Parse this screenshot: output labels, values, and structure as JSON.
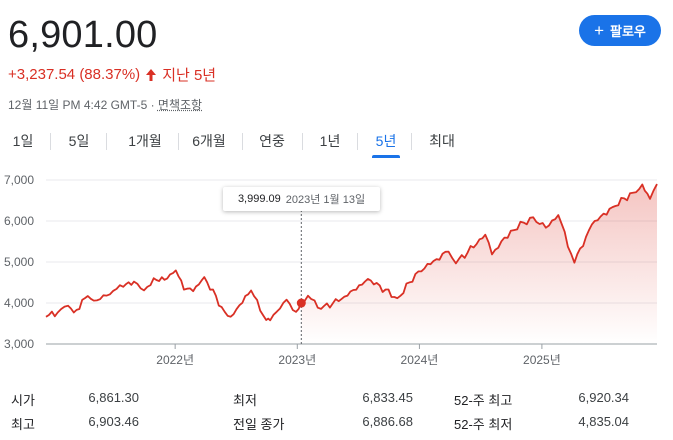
{
  "quote": {
    "price": "6,901.00",
    "change": "+3,237.54 (88.37%)",
    "period": "지난 5년",
    "timestamp": "12월 11일 PM 4:42 GMT-5 · ",
    "disclaimer_link": "면책조항"
  },
  "follow_button": {
    "icon": "plus-icon",
    "label": "팔로우"
  },
  "tabs": [
    {
      "label": "1일",
      "active": false
    },
    {
      "label": "5일",
      "active": false
    },
    {
      "label": "1개월",
      "active": false
    },
    {
      "label": "6개월",
      "active": false
    },
    {
      "label": "연중",
      "active": false
    },
    {
      "label": "1년",
      "active": false
    },
    {
      "label": "5년",
      "active": true
    },
    {
      "label": "최대",
      "active": false
    }
  ],
  "tooltip": {
    "value": "3,999.09",
    "date": "2023년 1월 13일"
  },
  "chart_data": {
    "type": "area",
    "title": "",
    "xlabel": "",
    "ylabel": "",
    "ylim": [
      3000,
      7000
    ],
    "yticks": [
      "7,000",
      "6,000",
      "5,000",
      "4,000",
      "3,000"
    ],
    "xticks": [
      "2022년",
      "2023년",
      "2024년",
      "2025년"
    ],
    "color": "#d93025",
    "grid": "horizontal",
    "series": [
      {
        "values": [
          [
            "2020-12-11",
            3663
          ],
          [
            "2021-01-15",
            3768
          ],
          [
            "2021-02-15",
            3934
          ],
          [
            "2021-03-04",
            3768
          ],
          [
            "2021-04-15",
            4170
          ],
          [
            "2021-05-12",
            4063
          ],
          [
            "2021-06-30",
            4297
          ],
          [
            "2021-07-30",
            4395
          ],
          [
            "2021-08-31",
            4522
          ],
          [
            "2021-09-30",
            4307
          ],
          [
            "2021-10-29",
            4605
          ],
          [
            "2021-11-30",
            4567
          ],
          [
            "2022-01-03",
            4796
          ],
          [
            "2022-01-27",
            4326
          ],
          [
            "2022-02-24",
            4288
          ],
          [
            "2022-03-29",
            4631
          ],
          [
            "2022-05-20",
            3901
          ],
          [
            "2022-06-16",
            3666
          ],
          [
            "2022-08-16",
            4305
          ],
          [
            "2022-09-30",
            3585
          ],
          [
            "2022-10-12",
            3577
          ],
          [
            "2022-11-30",
            4080
          ],
          [
            "2022-12-28",
            3783
          ],
          [
            "2023-01-13",
            3999
          ],
          [
            "2023-02-02",
            4179
          ],
          [
            "2023-03-13",
            3855
          ],
          [
            "2023-05-31",
            4180
          ],
          [
            "2023-07-31",
            4588
          ],
          [
            "2023-10-27",
            4117
          ],
          [
            "2023-12-29",
            4770
          ],
          [
            "2024-03-28",
            5254
          ],
          [
            "2024-04-19",
            4967
          ],
          [
            "2024-07-16",
            5667
          ],
          [
            "2024-08-05",
            5186
          ],
          [
            "2024-09-30",
            5762
          ],
          [
            "2024-12-06",
            6090
          ],
          [
            "2025-01-13",
            5836
          ],
          [
            "2025-02-19",
            6144
          ],
          [
            "2025-04-08",
            4982
          ],
          [
            "2025-05-30",
            5912
          ],
          [
            "2025-07-31",
            6339
          ],
          [
            "2025-09-30",
            6688
          ],
          [
            "2025-10-28",
            6890
          ],
          [
            "2025-11-20",
            6538
          ],
          [
            "2025-12-11",
            6901
          ]
        ]
      }
    ],
    "marker": {
      "date": "2023-01-13",
      "value": 3999.09
    }
  },
  "stats": [
    {
      "label": "시가",
      "value": "6,861.30"
    },
    {
      "label": "최저",
      "value": "6,833.45"
    },
    {
      "label": "52-주 최고",
      "value": "6,920.34"
    },
    {
      "label": "최고",
      "value": "6,903.46"
    },
    {
      "label": "전일 종가",
      "value": "6,886.68"
    },
    {
      "label": "52-주 최저",
      "value": "4,835.04"
    }
  ]
}
